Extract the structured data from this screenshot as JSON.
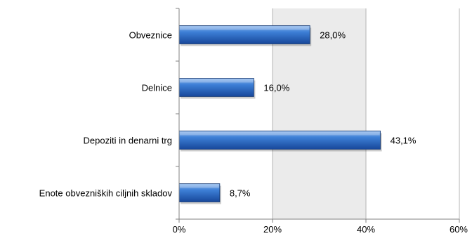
{
  "chart_data": {
    "type": "bar",
    "orientation": "horizontal",
    "categories": [
      "Obveznice",
      "Delnice",
      "Depoziti in denarni trg",
      "Enote obvezniških ciljnih skladov"
    ],
    "values": [
      28.0,
      16.0,
      43.1,
      8.7
    ],
    "data_labels": [
      "28,0%",
      "16,0%",
      "43,1%",
      "8,7%"
    ],
    "xlim": [
      0,
      60
    ],
    "x_ticks": [
      0,
      20,
      40,
      60
    ],
    "x_tick_labels": [
      "0%",
      "20%",
      "40%",
      "60%"
    ],
    "grid": true,
    "legend": "none",
    "colors": {
      "bar_light": "#8fb8ec",
      "bar_mid": "#3d7fd6",
      "bar_dark": "#17479a",
      "bar_stroke": "#1b3c73",
      "plot_bg_band": "#ebebeb",
      "gridline": "#b5b5b5",
      "axis": "#808080"
    }
  }
}
